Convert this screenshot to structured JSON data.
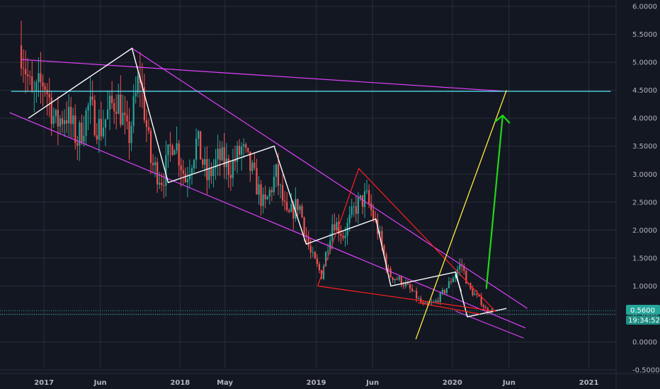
{
  "chart_data": {
    "type": "candlestick",
    "title": "",
    "xlabel": "",
    "ylabel": "",
    "ylim": [
      -0.6,
      6.1
    ],
    "x_range": [
      "2016-09-05",
      "2021-03-15"
    ],
    "grid": true,
    "y_ticks": [
      "6.0000",
      "5.5000",
      "5.0000",
      "4.5000",
      "4.0000",
      "3.5000",
      "3.0000",
      "2.5000",
      "2.0000",
      "1.5000",
      "1.0000",
      "0.5000",
      "0.0000",
      "-0.5000"
    ],
    "x_ticks": [
      {
        "label": "2017",
        "date": "2017-01-01"
      },
      {
        "label": "Jun",
        "date": "2017-06-01"
      },
      {
        "label": "2018",
        "date": "2018-01-01"
      },
      {
        "label": "May",
        "date": "2018-05-01"
      },
      {
        "label": "2019",
        "date": "2019-01-01"
      },
      {
        "label": "Jun",
        "date": "2019-06-01"
      },
      {
        "label": "2020",
        "date": "2020-01-01"
      },
      {
        "label": "Jun",
        "date": "2020-06-01"
      },
      {
        "label": "2021",
        "date": "2021-01-01"
      }
    ],
    "last_price": "0.5600",
    "countdown": "19:34:52",
    "colors": {
      "background": "#131722",
      "grid": "#2a2e39",
      "up": "#26a69a",
      "down": "#ef5350",
      "channel": "#e040fb",
      "pattern": "#ffffff",
      "triangle": "#ff1f1f",
      "projection": "#ffeb3b",
      "arrow": "#22d618",
      "horizontal": "#4dd0e1",
      "badge": "#26a69a"
    },
    "path_points": [
      [
        "2016-11-01",
        5.3
      ],
      [
        "2016-12-01",
        4.3
      ],
      [
        "2017-01-01",
        4.7
      ],
      [
        "2017-02-01",
        3.9
      ],
      [
        "2017-03-01",
        4.1
      ],
      [
        "2017-04-01",
        3.6
      ],
      [
        "2017-05-01",
        4.2
      ],
      [
        "2017-06-01",
        3.8
      ],
      [
        "2017-07-15",
        4.4
      ],
      [
        "2017-08-15",
        3.6
      ],
      [
        "2017-09-15",
        4.8
      ],
      [
        "2017-10-15",
        3.2
      ],
      [
        "2017-11-15",
        2.9
      ],
      [
        "2017-12-15",
        3.7
      ],
      [
        "2018-01-15",
        2.9
      ],
      [
        "2018-02-15",
        3.6
      ],
      [
        "2018-03-15",
        2.9
      ],
      [
        "2018-04-15",
        3.3
      ],
      [
        "2018-05-15",
        3.1
      ],
      [
        "2018-06-15",
        3.45
      ],
      [
        "2018-07-15",
        3.0
      ],
      [
        "2018-08-15",
        2.4
      ],
      [
        "2018-09-15",
        3.0
      ],
      [
        "2018-10-15",
        2.2
      ],
      [
        "2018-11-15",
        2.5
      ],
      [
        "2018-12-15",
        1.6
      ],
      [
        "2019-01-15",
        1.2
      ],
      [
        "2019-02-15",
        2.2
      ],
      [
        "2019-03-15",
        1.9
      ],
      [
        "2019-04-15",
        2.4
      ],
      [
        "2019-05-15",
        2.6
      ],
      [
        "2019-06-15",
        2.0
      ],
      [
        "2019-07-15",
        1.2
      ],
      [
        "2019-08-15",
        1.1
      ],
      [
        "2019-09-15",
        0.9
      ],
      [
        "2019-10-15",
        0.65
      ],
      [
        "2019-11-15",
        0.7
      ],
      [
        "2019-12-15",
        0.95
      ],
      [
        "2020-01-10",
        1.25
      ],
      [
        "2020-01-25",
        1.4
      ],
      [
        "2020-02-15",
        0.95
      ],
      [
        "2020-03-15",
        0.75
      ],
      [
        "2020-04-01",
        0.56
      ],
      [
        "2020-04-20",
        0.56
      ]
    ],
    "drawings": [
      {
        "name": "channel-upper",
        "color": "channel",
        "width": 1.2,
        "points": [
          [
            "2016-11-01",
            5.05
          ],
          [
            "2020-05-25",
            4.48
          ]
        ]
      },
      {
        "name": "channel-lower",
        "color": "channel",
        "width": 1.2,
        "points": [
          [
            "2016-10-01",
            4.1
          ],
          [
            "2020-07-15",
            0.25
          ]
        ]
      },
      {
        "name": "descending-resistance",
        "color": "channel",
        "width": 1.2,
        "points": [
          [
            "2017-08-25",
            5.25
          ],
          [
            "2020-07-20",
            0.6
          ]
        ]
      },
      {
        "name": "falling-wedge-lower",
        "color": "channel",
        "width": 1.2,
        "points": [
          [
            "2020-01-10",
            0.55
          ],
          [
            "2020-07-10",
            0.07
          ]
        ]
      },
      {
        "name": "horizontal-resistance",
        "color": "horizontal",
        "width": 1.4,
        "points": [
          [
            "2016-10-05",
            4.48
          ],
          [
            "2021-03-01",
            4.48
          ]
        ]
      },
      {
        "name": "white-pattern-1",
        "color": "pattern",
        "width": 1.4,
        "points": [
          [
            "2016-11-20",
            4.0
          ],
          [
            "2017-08-25",
            5.25
          ],
          [
            "2017-11-30",
            2.85
          ],
          [
            "2018-09-10",
            3.5
          ],
          [
            "2018-12-05",
            1.75
          ],
          [
            "2019-06-10",
            2.2
          ],
          [
            "2019-07-20",
            1.0
          ],
          [
            "2020-01-10",
            1.25
          ],
          [
            "2020-02-10",
            0.45
          ],
          [
            "2020-05-25",
            0.6
          ]
        ]
      },
      {
        "name": "white-pattern-1-closure",
        "color": "pattern",
        "width": 1.4,
        "points": [
          [
            "2020-01-25",
            0.9
          ],
          [
            "2020-01-10",
            1.2
          ]
        ]
      },
      {
        "name": "red-triangle",
        "color": "triangle",
        "width": 1.2,
        "closed": true,
        "points": [
          [
            "2019-01-05",
            1.0
          ],
          [
            "2019-04-25",
            3.1
          ],
          [
            "2020-04-25",
            0.55
          ]
        ]
      },
      {
        "name": "red-line-second",
        "color": "triangle",
        "width": 1.2,
        "points": [
          [
            "2019-10-01",
            0.7
          ],
          [
            "2020-03-15",
            0.5
          ]
        ]
      },
      {
        "name": "yellow-projection",
        "color": "projection",
        "width": 1.3,
        "points": [
          [
            "2019-09-25",
            0.05
          ],
          [
            "2020-05-25",
            4.5
          ]
        ]
      }
    ],
    "arrow": {
      "name": "target-arrow",
      "color": "arrow",
      "from": [
        "2020-04-01",
        0.95
      ],
      "to": [
        "2020-05-15",
        4.05
      ]
    }
  }
}
